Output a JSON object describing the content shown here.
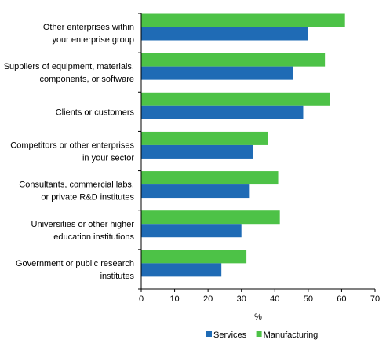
{
  "chart_data": {
    "type": "bar",
    "orientation": "horizontal",
    "categories": [
      [
        "Other enterprises within",
        "your enterprise group"
      ],
      [
        "Suppliers of equipment, materials,",
        "components, or software"
      ],
      [
        "Clients or customers"
      ],
      [
        "Competitors or other enterprises",
        "in your sector"
      ],
      [
        "Consultants, commercial labs,",
        "or private R&D institutes"
      ],
      [
        "Universities or other higher",
        "education institutions"
      ],
      [
        "Government or public research",
        "institutes"
      ]
    ],
    "series": [
      {
        "name": "Manufacturing",
        "color": "#4DC247",
        "values": [
          61,
          55,
          56.5,
          38,
          41,
          41.5,
          31.5
        ]
      },
      {
        "name": "Services",
        "color": "#1F6BB5",
        "values": [
          50,
          45.5,
          48.5,
          33.5,
          32.5,
          30,
          24
        ]
      }
    ],
    "xlabel": "%",
    "xlim": [
      0,
      70
    ],
    "xticks": [
      0,
      10,
      20,
      30,
      40,
      50,
      60,
      70
    ],
    "grid": false,
    "legend": {
      "placement": "bottom",
      "items": [
        {
          "name": "Services",
          "color": "#1F6BB5"
        },
        {
          "name": "Manufacturing",
          "color": "#4DC247"
        }
      ]
    }
  }
}
